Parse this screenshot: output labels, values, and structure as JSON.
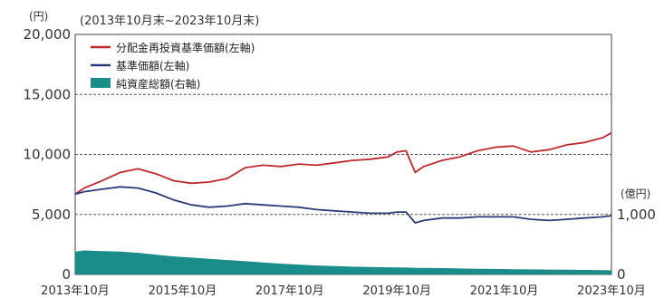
{
  "chart_data": {
    "type": "line",
    "period_label": "(2013年10月末~2023年10月末)",
    "left_axis": {
      "unit": "(円)",
      "ticks": [
        "0",
        "5,000",
        "10,000",
        "15,000",
        "20,000"
      ],
      "ylim": [
        0,
        20000
      ]
    },
    "right_axis": {
      "unit": "(億円)",
      "ticks": [
        "0",
        "1,000"
      ],
      "ylim": [
        0,
        4000
      ]
    },
    "x_ticks": [
      "2013年10月",
      "2015年10月",
      "2017年10月",
      "2019年10月",
      "2021年10月",
      "2023年10月"
    ],
    "x": [
      2013.83,
      2014.0,
      2014.33,
      2014.67,
      2015.0,
      2015.33,
      2015.67,
      2016.0,
      2016.33,
      2016.67,
      2017.0,
      2017.33,
      2017.67,
      2018.0,
      2018.33,
      2018.67,
      2019.0,
      2019.33,
      2019.67,
      2019.83,
      2020.0,
      2020.17,
      2020.33,
      2020.67,
      2021.0,
      2021.33,
      2021.67,
      2022.0,
      2022.33,
      2022.67,
      2023.0,
      2023.33,
      2023.67,
      2023.83
    ],
    "grid_y": [
      5000,
      10000,
      15000
    ],
    "legend_position": "top-left",
    "series": [
      {
        "name": "分配金再投資基準価額(左軸)",
        "color": "#c0282d",
        "axis": "left",
        "values": [
          6700,
          7200,
          7800,
          8500,
          8800,
          8400,
          7800,
          7600,
          7700,
          8000,
          8900,
          9100,
          9000,
          9200,
          9100,
          9300,
          9500,
          9600,
          9800,
          10200,
          10300,
          8500,
          9000,
          9500,
          9800,
          10300,
          10600,
          10700,
          10200,
          10400,
          10800,
          11000,
          11400,
          11800
        ]
      },
      {
        "name": "基準価額(左軸)",
        "color": "#2b3b7a",
        "axis": "left",
        "values": [
          6700,
          6900,
          7100,
          7300,
          7200,
          6800,
          6200,
          5800,
          5600,
          5700,
          5900,
          5800,
          5700,
          5600,
          5400,
          5300,
          5200,
          5100,
          5100,
          5200,
          5200,
          4300,
          4500,
          4700,
          4700,
          4800,
          4800,
          4800,
          4600,
          4500,
          4600,
          4700,
          4800,
          4900
        ]
      },
      {
        "name": "純資産総額(右軸)",
        "color": "#1a8c8a",
        "axis": "right",
        "type": "area",
        "values": [
          380,
          400,
          390,
          380,
          360,
          330,
          300,
          280,
          260,
          240,
          220,
          200,
          180,
          165,
          150,
          140,
          130,
          125,
          120,
          118,
          115,
          110,
          108,
          105,
          100,
          95,
          92,
          88,
          85,
          82,
          78,
          75,
          72,
          70
        ]
      }
    ]
  }
}
